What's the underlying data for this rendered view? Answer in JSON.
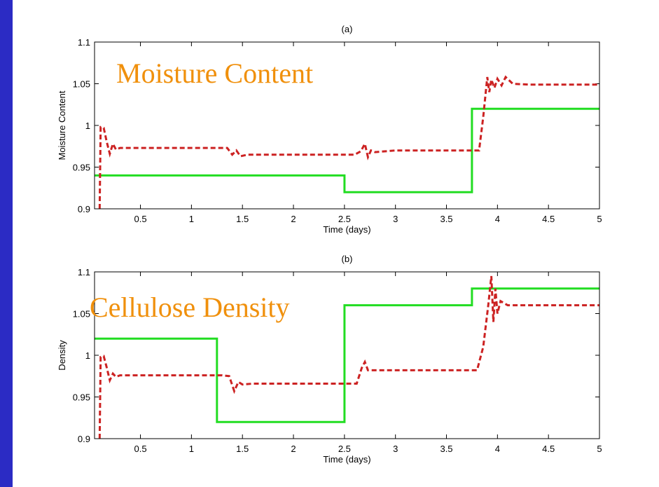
{
  "colors": {
    "frame": "#2b2bc4",
    "background": "#ffffff",
    "overlay_text": "#f0900c",
    "solid_series": "#22dd22",
    "dashed_series": "#cc2222"
  },
  "chart_data": [
    {
      "type": "line",
      "title": "(a)",
      "overlay_label": "Moisture Content",
      "xlabel": "Time (days)",
      "ylabel": "Moisture Content",
      "xlim": [
        0.05,
        5
      ],
      "ylim": [
        0.9,
        1.1
      ],
      "xticks": [
        0.5,
        1,
        1.5,
        2,
        2.5,
        3,
        3.5,
        4,
        4.5,
        5
      ],
      "xtick_labels": [
        "0.5",
        "1",
        "1.5",
        "2",
        "2.5",
        "3",
        "3.5",
        "4",
        "4.5",
        "5"
      ],
      "yticks": [
        0.9,
        0.95,
        1,
        1.05,
        1.1
      ],
      "ytick_labels": [
        "0.9",
        "0.95",
        "1",
        "1.05",
        "1.1"
      ],
      "grid": false,
      "series": [
        {
          "style": "solid",
          "color": "#22dd22",
          "x": [
            0.05,
            2.5,
            2.5,
            3.75,
            3.75,
            5
          ],
          "y": [
            0.94,
            0.94,
            0.92,
            0.92,
            1.02,
            1.02
          ]
        },
        {
          "style": "dashed",
          "color": "#cc2222",
          "x": [
            0.1,
            0.11,
            0.14,
            0.17,
            0.2,
            0.23,
            0.26,
            0.3,
            0.5,
            1.35,
            1.4,
            1.44,
            1.48,
            1.55,
            2.5,
            2.6,
            2.66,
            2.7,
            2.73,
            2.76,
            2.8,
            3.0,
            3.6,
            3.82,
            3.86,
            3.9,
            3.92,
            3.94,
            3.97,
            4.0,
            4.04,
            4.08,
            4.15,
            4.3,
            5.0
          ],
          "y": [
            0.9,
            0.998,
            0.997,
            0.98,
            0.966,
            0.978,
            0.971,
            0.973,
            0.973,
            0.973,
            0.965,
            0.97,
            0.963,
            0.965,
            0.965,
            0.965,
            0.969,
            0.978,
            0.962,
            0.97,
            0.968,
            0.97,
            0.97,
            0.97,
            1.01,
            1.058,
            1.04,
            1.055,
            1.045,
            1.056,
            1.048,
            1.058,
            1.05,
            1.049,
            1.049
          ]
        }
      ]
    },
    {
      "type": "line",
      "title": "(b)",
      "overlay_label": "Cellulose Density",
      "xlabel": "Time (days)",
      "ylabel": "Density",
      "xlim": [
        0.05,
        5
      ],
      "ylim": [
        0.9,
        1.1
      ],
      "xticks": [
        0.5,
        1,
        1.5,
        2,
        2.5,
        3,
        3.5,
        4,
        4.5,
        5
      ],
      "xtick_labels": [
        "0.5",
        "1",
        "1.5",
        "2",
        "2.5",
        "3",
        "3.5",
        "4",
        "4.5",
        "5"
      ],
      "yticks": [
        0.9,
        0.95,
        1,
        1.05,
        1.1
      ],
      "ytick_labels": [
        "0.9",
        "0.95",
        "1",
        "1.05",
        "1.1"
      ],
      "grid": false,
      "series": [
        {
          "style": "solid",
          "color": "#22dd22",
          "x": [
            0.05,
            1.25,
            1.25,
            2.5,
            2.5,
            3.75,
            3.75,
            5
          ],
          "y": [
            1.02,
            1.02,
            0.92,
            0.92,
            1.06,
            1.06,
            1.08,
            1.08
          ]
        },
        {
          "style": "dashed",
          "color": "#cc2222",
          "x": [
            0.1,
            0.11,
            0.14,
            0.17,
            0.2,
            0.23,
            0.26,
            0.3,
            0.5,
            1.3,
            1.37,
            1.42,
            1.46,
            1.5,
            1.6,
            2.5,
            2.62,
            2.67,
            2.7,
            2.73,
            2.8,
            3.0,
            3.8,
            3.86,
            3.91,
            3.94,
            3.96,
            3.98,
            4.0,
            4.03,
            4.1,
            4.3,
            5.0
          ],
          "y": [
            0.9,
            0.998,
            0.999,
            0.985,
            0.97,
            0.978,
            0.974,
            0.976,
            0.976,
            0.976,
            0.975,
            0.957,
            0.968,
            0.965,
            0.966,
            0.966,
            0.966,
            0.985,
            0.992,
            0.982,
            0.982,
            0.982,
            0.982,
            1.01,
            1.06,
            1.095,
            1.04,
            1.08,
            1.05,
            1.065,
            1.06,
            1.06,
            1.06
          ]
        }
      ]
    }
  ]
}
